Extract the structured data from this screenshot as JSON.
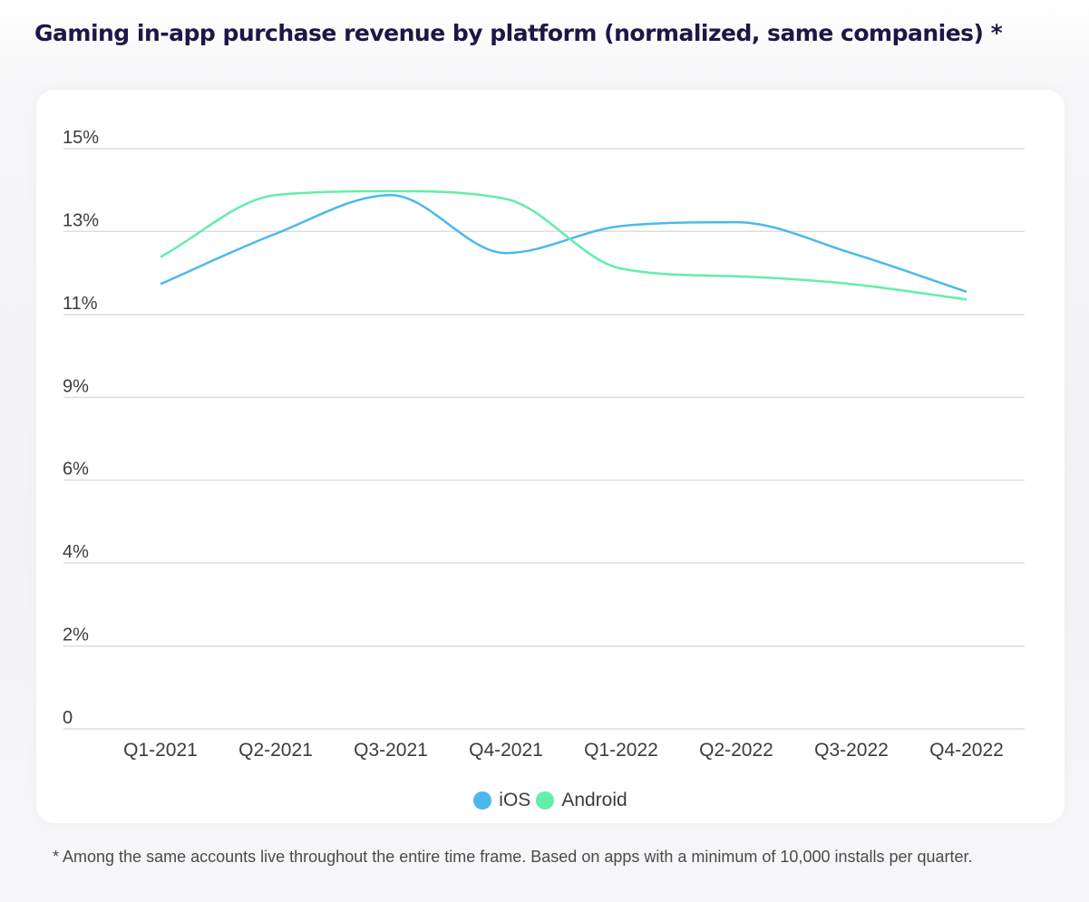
{
  "page": {
    "title": "Gaming in-app purchase revenue by platform (normalized, same companies) *",
    "footnote": "* Among the same accounts live throughout the entire time frame. Based on apps with a minimum of 10,000 installs per quarter."
  },
  "colors": {
    "ios": "#4cb8ee",
    "android": "#63eeab",
    "title": "#1d1747",
    "grid": "#dedede",
    "text": "#3c3c3c"
  },
  "legend": {
    "items": [
      {
        "label": "iOS",
        "color": "#4cb8ee",
        "icon": "circle-marker"
      },
      {
        "label": "Android",
        "color": "#63eeab",
        "icon": "circle-marker"
      }
    ]
  },
  "chart_data": {
    "type": "line",
    "title": "Gaming in-app purchase revenue by platform (normalized, same companies) *",
    "xlabel": "",
    "ylabel": "",
    "categories": [
      "Q1-2021",
      "Q2-2021",
      "Q3-2021",
      "Q4-2021",
      "Q1-2022",
      "Q2-2022",
      "Q3-2022",
      "Q4-2022"
    ],
    "ylim": [
      0,
      15
    ],
    "yticks": [
      0,
      2.14,
      4.29,
      6.43,
      8.57,
      10.71,
      12.86,
      15
    ],
    "ytick_labels": [
      "0",
      "2%",
      "4%",
      "6%",
      "9%",
      "11%",
      "13%",
      "15%"
    ],
    "grid": true,
    "smooth": true,
    "legend_position": "bottom-center",
    "series": [
      {
        "name": "iOS",
        "color": "#4cb8ee",
        "values": [
          11.5,
          12.8,
          13.8,
          12.3,
          13.0,
          13.1,
          12.3,
          11.3
        ]
      },
      {
        "name": "Android",
        "color": "#63eeab",
        "values": [
          12.2,
          13.8,
          13.9,
          13.7,
          11.9,
          11.7,
          11.5,
          11.1
        ]
      }
    ]
  }
}
